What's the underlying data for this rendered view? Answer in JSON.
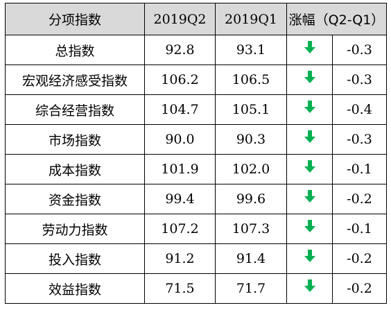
{
  "table": {
    "headers": {
      "name": "分项指数",
      "q2": "2019Q2",
      "q1": "2019Q1",
      "change": "涨幅（Q2-Q1）"
    },
    "rows": [
      {
        "name": "总指数",
        "q2": "92.8",
        "q1": "93.1",
        "direction": "down",
        "change": "-0.3"
      },
      {
        "name": "宏观经济感受指数",
        "q2": "106.2",
        "q1": "106.5",
        "direction": "down",
        "change": "-0.3"
      },
      {
        "name": "综合经营指数",
        "q2": "104.7",
        "q1": "105.1",
        "direction": "down",
        "change": "-0.4"
      },
      {
        "name": "市场指数",
        "q2": "90.0",
        "q1": "90.3",
        "direction": "down",
        "change": "-0.3"
      },
      {
        "name": "成本指数",
        "q2": "101.9",
        "q1": "102.0",
        "direction": "down",
        "change": "-0.1"
      },
      {
        "name": "资金指数",
        "q2": "99.4",
        "q1": "99.6",
        "direction": "down",
        "change": "-0.2"
      },
      {
        "name": "劳动力指数",
        "q2": "107.2",
        "q1": "107.3",
        "direction": "down",
        "change": "-0.1"
      },
      {
        "name": "投入指数",
        "q2": "91.2",
        "q1": "91.4",
        "direction": "down",
        "change": "-0.2"
      },
      {
        "name": "效益指数",
        "q2": "71.5",
        "q1": "71.7",
        "direction": "down",
        "change": "-0.2"
      }
    ]
  },
  "colors": {
    "header_bg": "#d9d9d9",
    "down_arrow": "#00b050"
  },
  "icons": {
    "down": "down-arrow-icon"
  }
}
